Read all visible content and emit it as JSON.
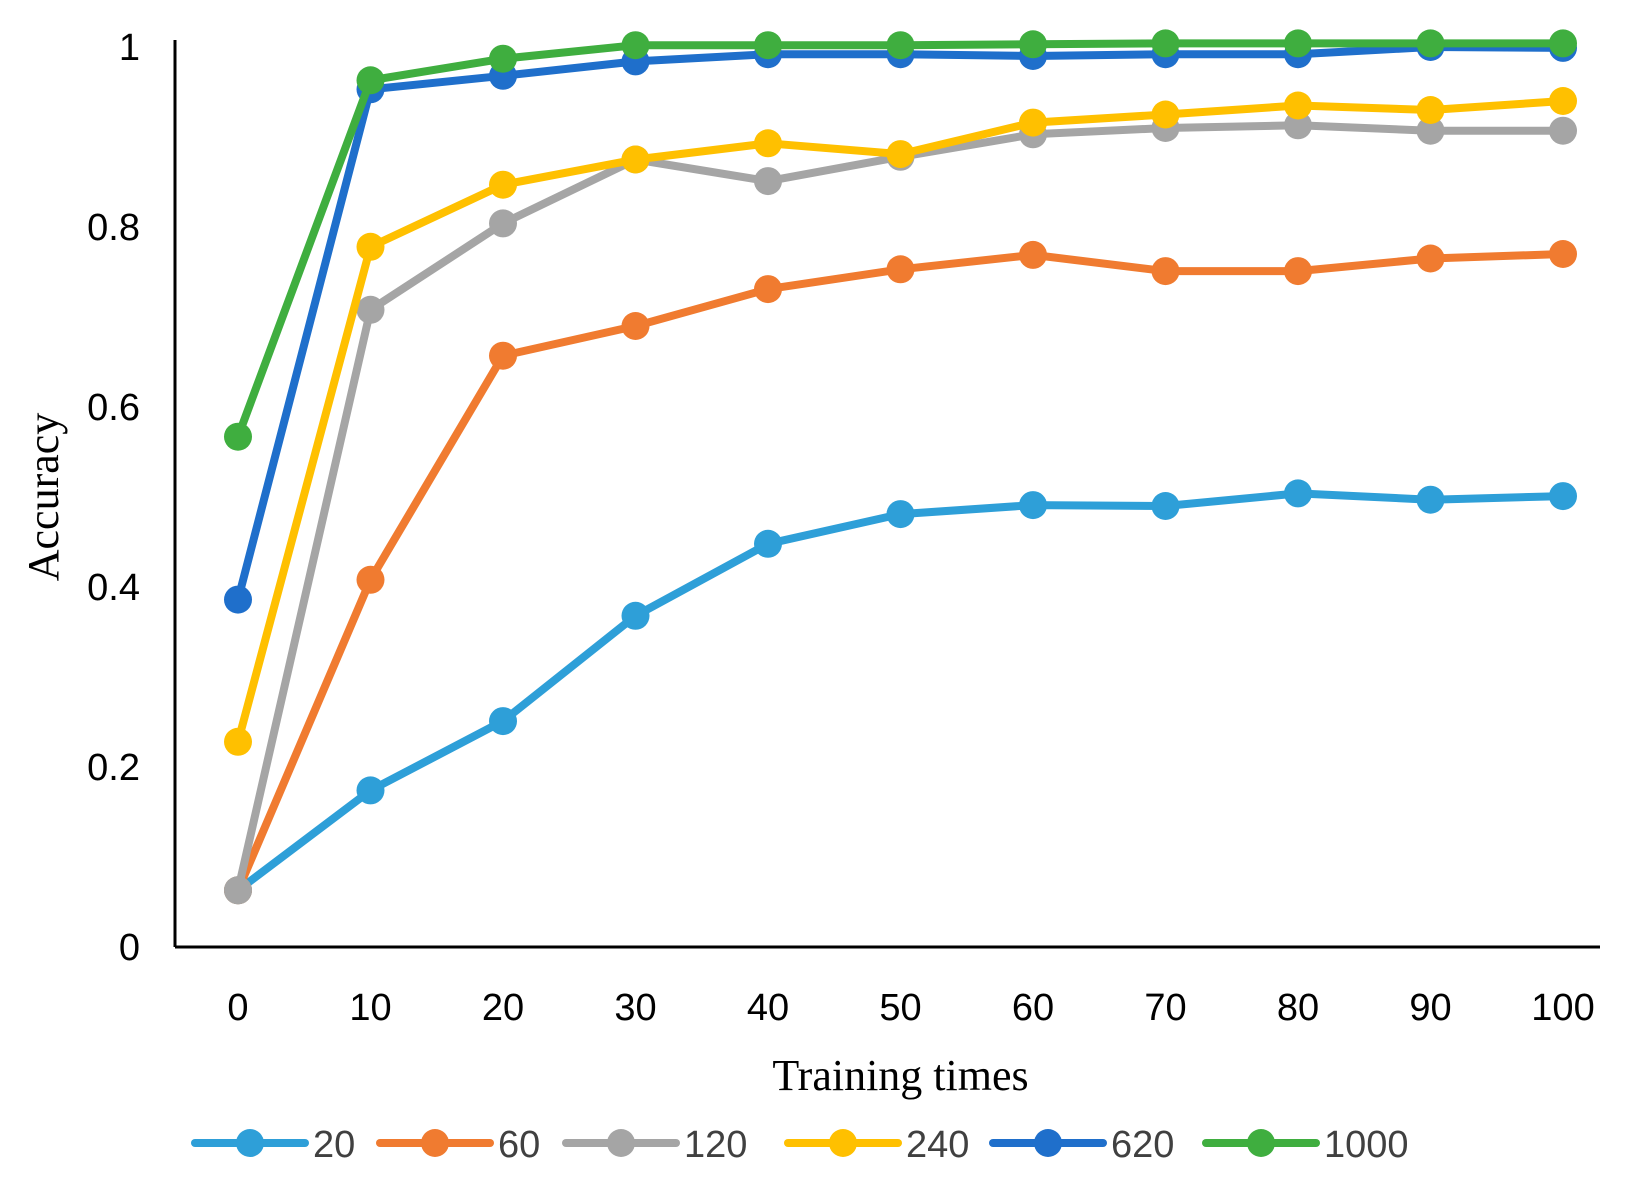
{
  "chart_data": {
    "type": "line",
    "title": "",
    "xlabel": "Training times",
    "ylabel": "Accuracy",
    "x": [
      0,
      10,
      20,
      30,
      40,
      50,
      60,
      70,
      80,
      90,
      100
    ],
    "x_tick_labels": [
      "0",
      "10",
      "20",
      "30",
      "40",
      "50",
      "60",
      "70",
      "80",
      "90",
      "100"
    ],
    "xlim": [
      0,
      100
    ],
    "ylim": [
      0,
      1
    ],
    "y_ticks": [
      0,
      0.2,
      0.4,
      0.6,
      0.8,
      1
    ],
    "y_tick_labels": [
      "0",
      "0.2",
      "0.4",
      "0.6",
      "0.8",
      "1"
    ],
    "grid": false,
    "legend_position": "bottom",
    "series": [
      {
        "name": "20",
        "color": "#2E9FD8",
        "values": [
          0.063,
          0.174,
          0.251,
          0.368,
          0.448,
          0.481,
          0.491,
          0.49,
          0.504,
          0.497,
          0.501
        ]
      },
      {
        "name": "60",
        "color": "#F07B30",
        "values": [
          0.063,
          0.408,
          0.657,
          0.69,
          0.731,
          0.753,
          0.769,
          0.751,
          0.751,
          0.765,
          0.77
        ]
      },
      {
        "name": "120",
        "color": "#A5A5A5",
        "values": [
          0.063,
          0.708,
          0.804,
          0.875,
          0.851,
          0.878,
          0.903,
          0.91,
          0.913,
          0.907,
          0.907
        ]
      },
      {
        "name": "240",
        "color": "#FFC000",
        "values": [
          0.228,
          0.778,
          0.847,
          0.875,
          0.893,
          0.881,
          0.916,
          0.925,
          0.935,
          0.93,
          0.94
        ]
      },
      {
        "name": "620",
        "color": "#1F6FCB",
        "values": [
          0.386,
          0.953,
          0.968,
          0.984,
          0.992,
          0.992,
          0.99,
          0.992,
          0.992,
          1.0,
          0.999
        ]
      },
      {
        "name": "1000",
        "color": "#3FAE3F",
        "values": [
          0.567,
          0.963,
          0.987,
          1.002,
          1.002,
          1.002,
          1.003,
          1.004,
          1.004,
          1.004,
          1.004
        ]
      }
    ]
  }
}
